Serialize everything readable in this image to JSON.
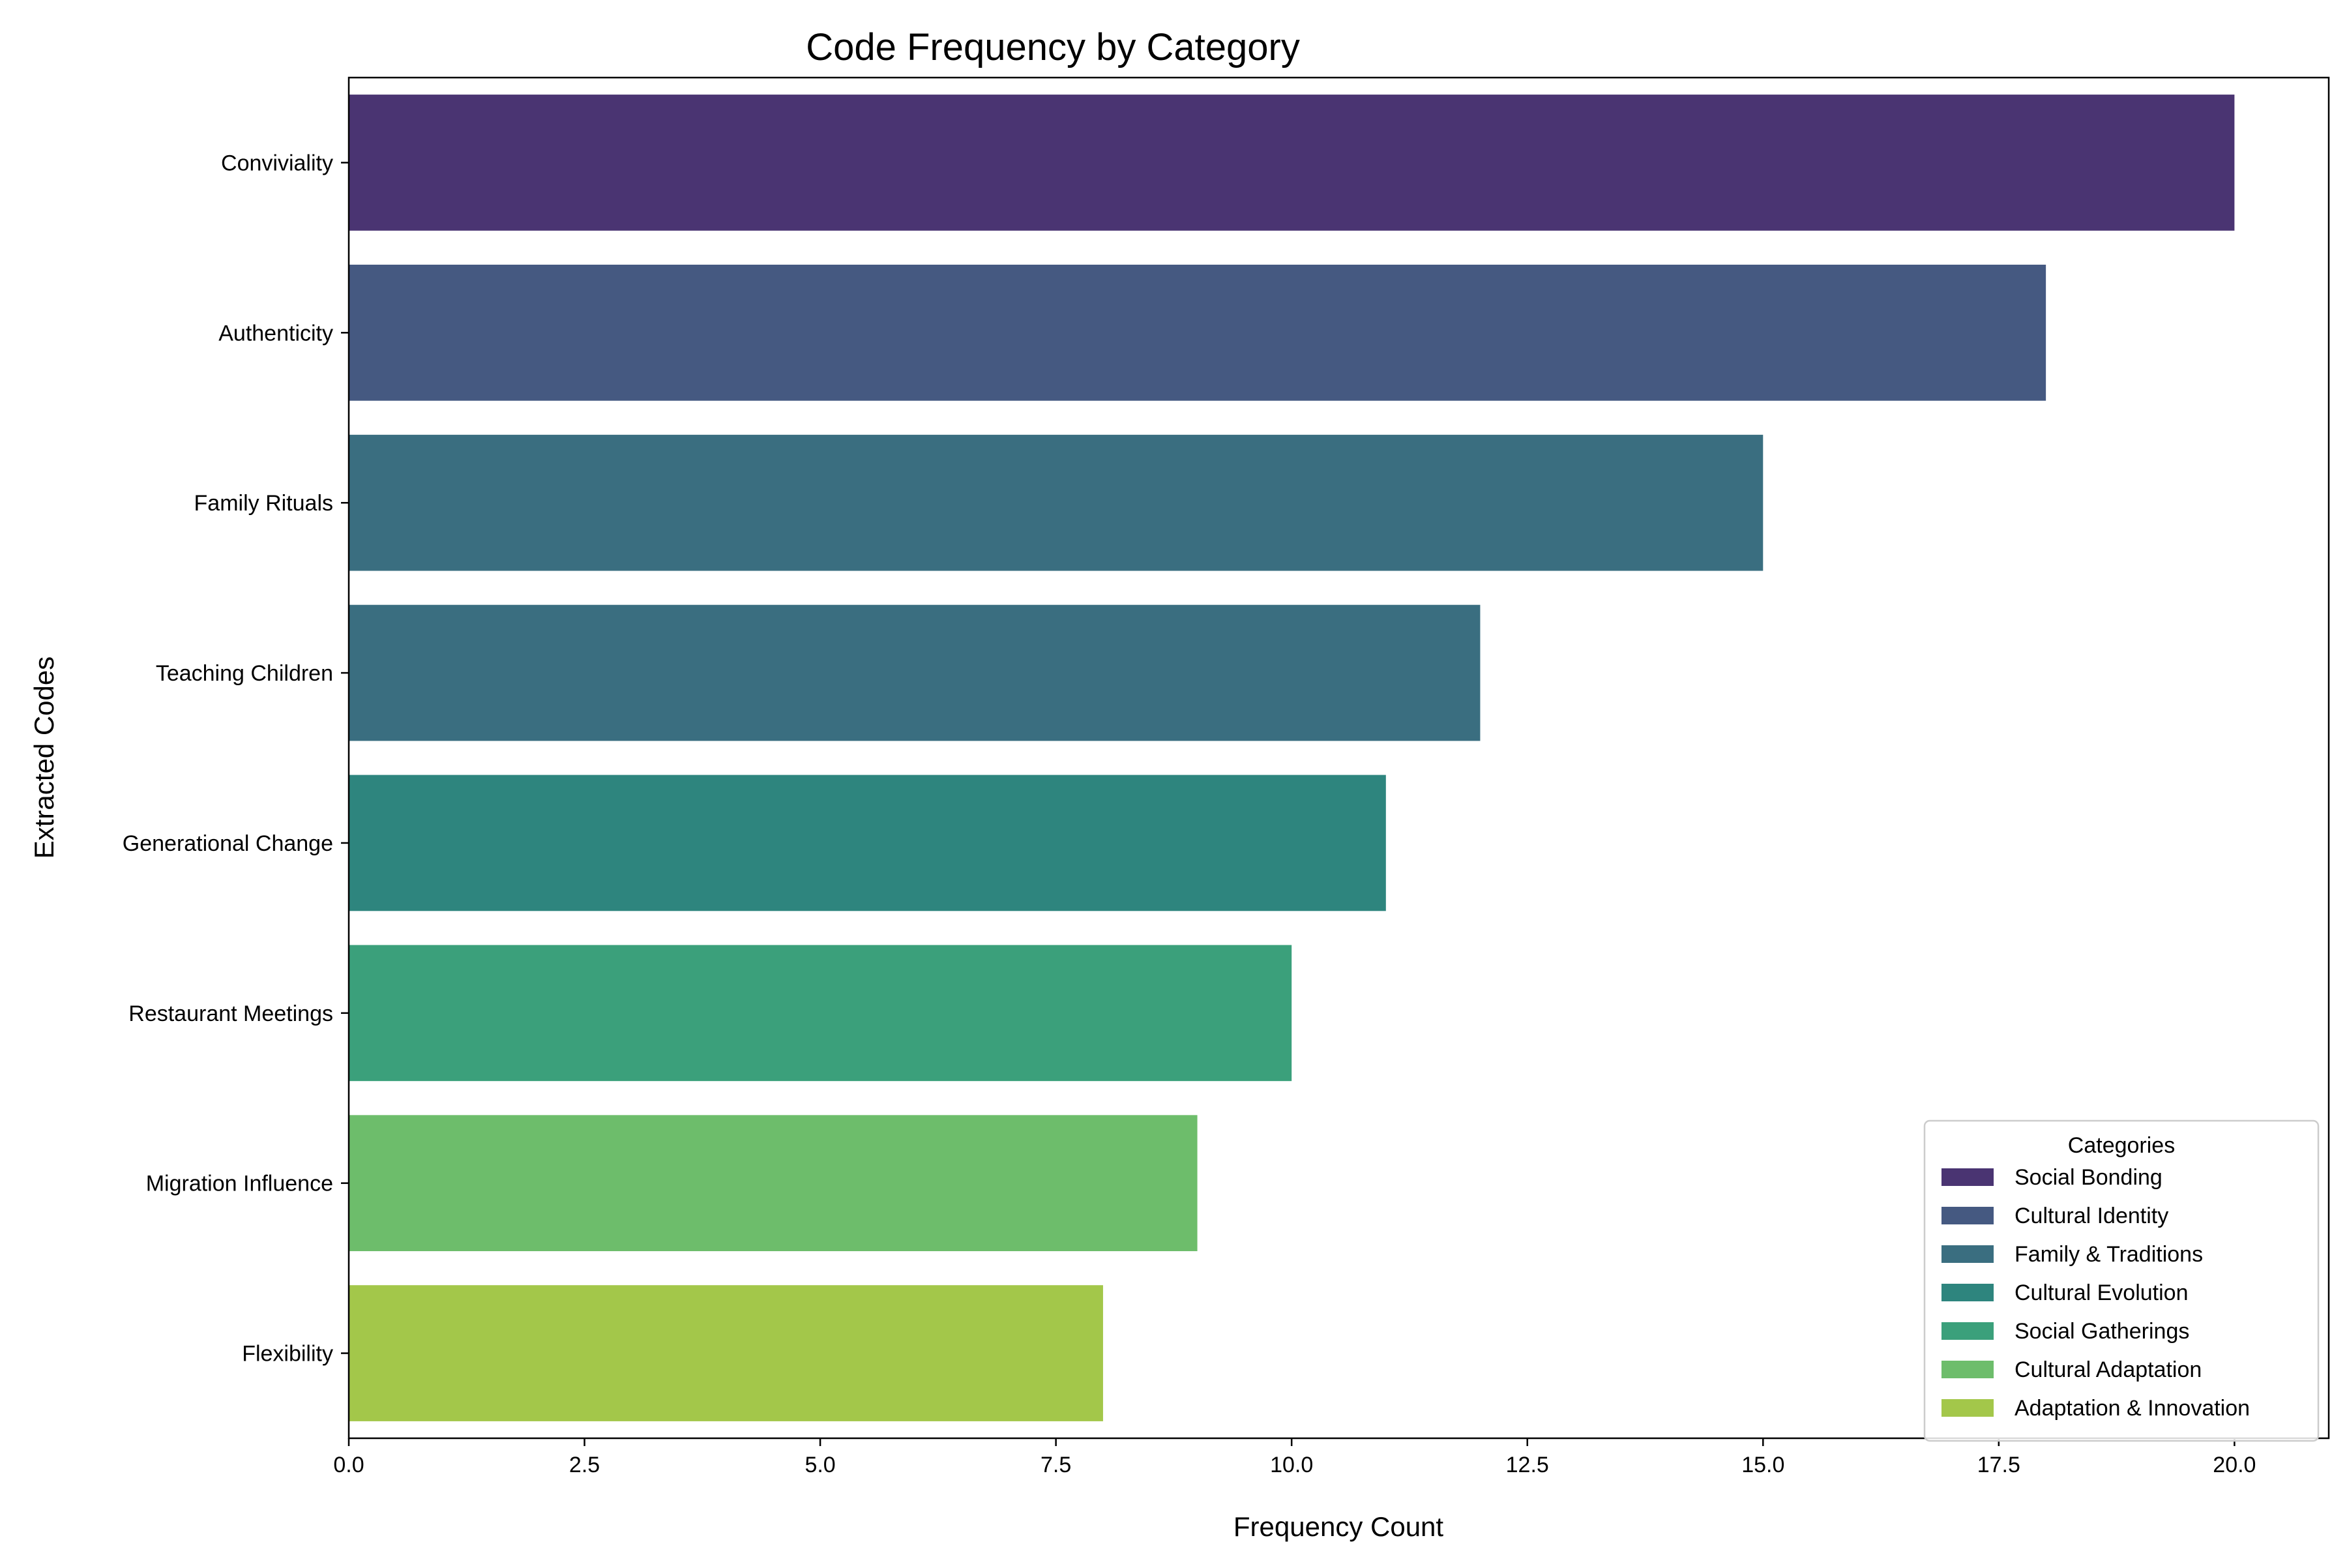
{
  "chart_data": {
    "type": "bar",
    "orientation": "horizontal",
    "title": "Code Frequency by Category",
    "xlabel": "Frequency Count",
    "ylabel": "Extracted Codes",
    "xlim": [
      0,
      21
    ],
    "xticks": [
      0.0,
      2.5,
      5.0,
      7.5,
      10.0,
      12.5,
      15.0,
      17.5,
      20.0
    ],
    "xtick_labels": [
      "0.0",
      "2.5",
      "5.0",
      "7.5",
      "10.0",
      "12.5",
      "15.0",
      "17.5",
      "20.0"
    ],
    "grid": false,
    "legend": {
      "title": "Categories",
      "placement": "lower-right"
    },
    "bars": [
      {
        "code": "Conviviality",
        "value": 20,
        "category": "Social Bonding",
        "color": "#4a3472"
      },
      {
        "code": "Authenticity",
        "value": 18,
        "category": "Cultural Identity",
        "color": "#455981"
      },
      {
        "code": "Family Rituals",
        "value": 15,
        "category": "Family & Traditions",
        "color": "#3a6e80"
      },
      {
        "code": "Teaching Children",
        "value": 12,
        "category": "Family & Traditions",
        "color": "#3a6e80"
      },
      {
        "code": "Generational Change",
        "value": 11,
        "category": "Cultural Evolution",
        "color": "#2e857e"
      },
      {
        "code": "Restaurant Meetings",
        "value": 10,
        "category": "Social Gatherings",
        "color": "#3ba07b"
      },
      {
        "code": "Migration Influence",
        "value": 9,
        "category": "Cultural Adaptation",
        "color": "#6dbd6b"
      },
      {
        "code": "Flexibility",
        "value": 8,
        "category": "Adaptation & Innovation",
        "color": "#a3c74a"
      }
    ],
    "legend_entries": [
      {
        "label": "Social Bonding",
        "color": "#4a3472"
      },
      {
        "label": "Cultural Identity",
        "color": "#455981"
      },
      {
        "label": "Family & Traditions",
        "color": "#3a6e80"
      },
      {
        "label": "Cultural Evolution",
        "color": "#2e857e"
      },
      {
        "label": "Social Gatherings",
        "color": "#3ba07b"
      },
      {
        "label": "Cultural Adaptation",
        "color": "#6dbd6b"
      },
      {
        "label": "Adaptation & Innovation",
        "color": "#a3c74a"
      }
    ]
  }
}
